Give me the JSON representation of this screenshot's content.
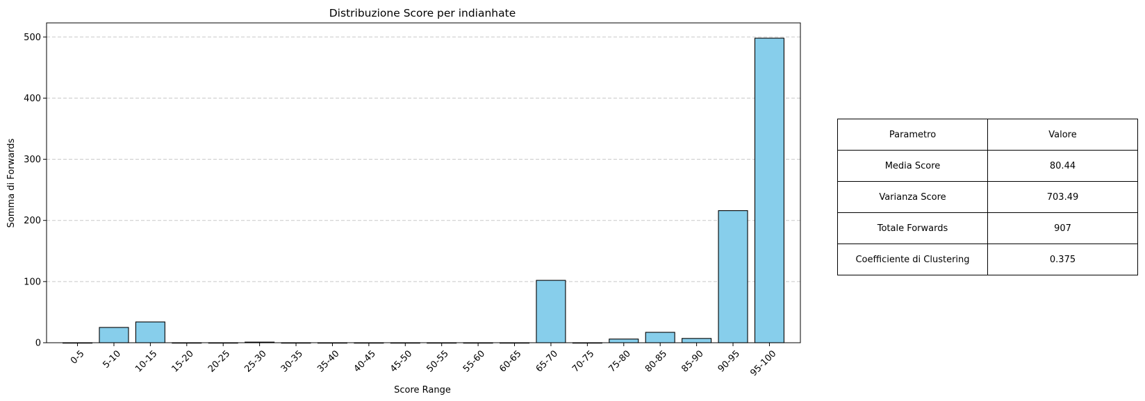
{
  "chart_data": {
    "type": "bar",
    "title": "Distribuzione Score per indianhate",
    "xlabel": "Score Range",
    "ylabel": "Somma di Forwards",
    "categories": [
      "0-5",
      "5-10",
      "10-15",
      "15-20",
      "20-25",
      "25-30",
      "30-35",
      "35-40",
      "40-45",
      "45-50",
      "50-55",
      "55-60",
      "60-65",
      "65-70",
      "70-75",
      "75-80",
      "80-85",
      "85-90",
      "90-95",
      "95-100"
    ],
    "values": [
      0,
      25,
      34,
      0,
      0,
      1,
      0,
      0,
      0,
      0,
      0,
      0,
      0,
      102,
      0,
      6,
      17,
      7,
      216,
      498
    ],
    "ylim": [
      0,
      523
    ],
    "yticks": [
      0,
      100,
      200,
      300,
      400,
      500
    ],
    "grid": "y-dashed",
    "bar_color": "#87CEEB",
    "edge_color": "#000000"
  },
  "table": {
    "header": [
      "Parametro",
      "Valore"
    ],
    "rows": [
      [
        "Media Score",
        "80.44"
      ],
      [
        "Varianza Score",
        "703.49"
      ],
      [
        "Totale Forwards",
        "907"
      ],
      [
        "Coefficiente di Clustering",
        "0.375"
      ]
    ]
  }
}
